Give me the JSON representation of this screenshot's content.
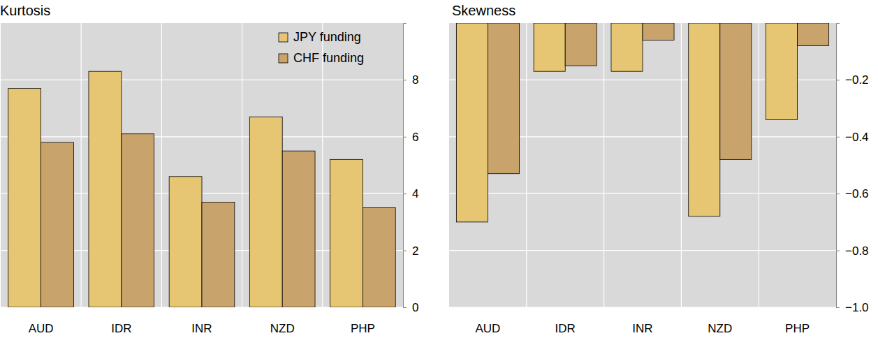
{
  "chart_data": [
    {
      "type": "bar",
      "title": "Kurtosis",
      "categories": [
        "AUD",
        "IDR",
        "INR",
        "NZD",
        "PHP"
      ],
      "series": [
        {
          "name": "JPY funding",
          "color": "#e6c672",
          "values": [
            7.7,
            8.3,
            4.6,
            6.7,
            5.2
          ]
        },
        {
          "name": "CHF funding",
          "color": "#c9a36c",
          "values": [
            5.8,
            6.1,
            3.7,
            5.5,
            3.5
          ]
        }
      ],
      "ylim": [
        0,
        10
      ],
      "yticks": [
        0,
        2,
        4,
        6,
        8
      ],
      "grid": true,
      "legend": "top-right"
    },
    {
      "type": "bar",
      "title": "Skewness",
      "categories": [
        "AUD",
        "IDR",
        "INR",
        "NZD",
        "PHP"
      ],
      "series": [
        {
          "color": "#e6c672",
          "values": [
            -0.7,
            -0.17,
            -0.17,
            -0.68,
            -0.34
          ]
        },
        {
          "color": "#c9a36c",
          "values": [
            -0.53,
            -0.15,
            -0.06,
            -0.48,
            -0.08
          ]
        }
      ],
      "ylim": [
        -1,
        0
      ],
      "yticks": [
        {
          "value": -1.0,
          "label": "−1.0"
        },
        {
          "value": -0.8,
          "label": "−0.8"
        },
        {
          "value": -0.6,
          "label": "−0.6"
        },
        {
          "value": -0.4,
          "label": "−0.4"
        },
        {
          "value": -0.2,
          "label": "−0.2"
        }
      ],
      "grid": true
    }
  ]
}
